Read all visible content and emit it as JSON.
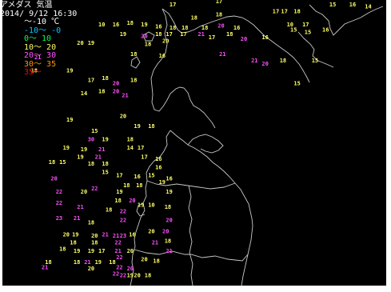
{
  "header": {
    "title": "アメダス 気温",
    "datetime": "2014/ 9/12 16:30"
  },
  "legend": [
    {
      "label": "～-10 ℃",
      "color": "#ffffff"
    },
    {
      "label": "-10～ -0",
      "color": "#00c8ff"
    },
    {
      "label": "0～ 10",
      "color": "#00ff50"
    },
    {
      "label": "10～ 20",
      "color": "#ffff64"
    },
    {
      "label": "20～ 30",
      "color": "#ff50ff"
    },
    {
      "label": "30～ 35",
      "color": "#ff9600"
    },
    {
      "label": "35～",
      "color": "#ff0000"
    }
  ],
  "stations": [
    {
      "v": "17",
      "c": "#ffff64",
      "lon": 141.55,
      "lat": 45.3
    },
    {
      "v": "18",
      "c": "#ffff64",
      "lon": 141.85,
      "lat": 45.1
    },
    {
      "v": "17",
      "c": "#ffff64",
      "lon": 142.2,
      "lat": 45.35
    },
    {
      "v": "18",
      "c": "#ffff64",
      "lon": 142.2,
      "lat": 45.15
    },
    {
      "v": "17",
      "c": "#ffff64",
      "lon": 143.0,
      "lat": 45.2
    },
    {
      "v": "17",
      "c": "#ffff64",
      "lon": 143.12,
      "lat": 45.2
    },
    {
      "v": "18",
      "c": "#ffff64",
      "lon": 143.3,
      "lat": 45.2
    },
    {
      "v": "15",
      "c": "#ffff64",
      "lon": 143.8,
      "lat": 45.3
    },
    {
      "v": "16",
      "c": "#ffff64",
      "lon": 144.08,
      "lat": 45.3
    },
    {
      "v": "14",
      "c": "#ffff64",
      "lon": 144.3,
      "lat": 45.27
    },
    {
      "v": "10",
      "c": "#ffff64",
      "lon": 140.55,
      "lat": 45.0
    },
    {
      "v": "16",
      "c": "#ffff64",
      "lon": 140.75,
      "lat": 45.0
    },
    {
      "v": "18",
      "c": "#ffff64",
      "lon": 140.95,
      "lat": 45.02
    },
    {
      "v": "19",
      "c": "#ffff64",
      "lon": 141.15,
      "lat": 45.0
    },
    {
      "v": "16",
      "c": "#ffff64",
      "lon": 141.35,
      "lat": 44.97
    },
    {
      "v": "18",
      "c": "#ffff64",
      "lon": 141.55,
      "lat": 44.95
    },
    {
      "v": "18",
      "c": "#ffff64",
      "lon": 141.72,
      "lat": 44.95
    },
    {
      "v": "18",
      "c": "#ffff64",
      "lon": 142.0,
      "lat": 44.95
    },
    {
      "v": "20",
      "c": "#ff50ff",
      "lon": 142.23,
      "lat": 44.98
    },
    {
      "v": "16",
      "c": "#ffff64",
      "lon": 142.45,
      "lat": 44.95
    },
    {
      "v": "10",
      "c": "#ffff64",
      "lon": 143.2,
      "lat": 45.0
    },
    {
      "v": "17",
      "c": "#ffff64",
      "lon": 143.42,
      "lat": 45.0
    },
    {
      "v": "15",
      "c": "#ffff64",
      "lon": 143.25,
      "lat": 44.92
    },
    {
      "v": "15",
      "c": "#ffff64",
      "lon": 143.45,
      "lat": 44.88
    },
    {
      "v": "16",
      "c": "#ffff64",
      "lon": 143.7,
      "lat": 44.92
    },
    {
      "v": "19",
      "c": "#ffff64",
      "lon": 140.85,
      "lat": 44.85
    },
    {
      "v": "20",
      "c": "#ff50ff",
      "lon": 141.15,
      "lat": 44.82
    },
    {
      "v": "18",
      "c": "#ffff64",
      "lon": 141.35,
      "lat": 44.85
    },
    {
      "v": "17",
      "c": "#ffff64",
      "lon": 141.5,
      "lat": 44.85
    },
    {
      "v": "17",
      "c": "#ffff64",
      "lon": 141.7,
      "lat": 44.85
    },
    {
      "v": "21",
      "c": "#ff50ff",
      "lon": 141.95,
      "lat": 44.85
    },
    {
      "v": "17",
      "c": "#ffff64",
      "lon": 142.1,
      "lat": 44.8
    },
    {
      "v": "18",
      "c": "#ffff64",
      "lon": 142.35,
      "lat": 44.85
    },
    {
      "v": "20",
      "c": "#ff50ff",
      "lon": 142.55,
      "lat": 44.78
    },
    {
      "v": "16",
      "c": "#ffff64",
      "lon": 142.85,
      "lat": 44.8
    },
    {
      "v": "20",
      "c": "#ffff64",
      "lon": 140.25,
      "lat": 44.72
    },
    {
      "v": "19",
      "c": "#ffff64",
      "lon": 140.4,
      "lat": 44.72
    },
    {
      "v": "18",
      "c": "#ffff64",
      "lon": 141.2,
      "lat": 44.7
    },
    {
      "v": "20",
      "c": "#ffff64",
      "lon": 141.45,
      "lat": 44.75
    },
    {
      "v": "18",
      "c": "#ffff64",
      "lon": 141.0,
      "lat": 44.55
    },
    {
      "v": "16",
      "c": "#ffff64",
      "lon": 141.4,
      "lat": 44.52
    },
    {
      "v": "21",
      "c": "#ff50ff",
      "lon": 142.25,
      "lat": 44.55
    },
    {
      "v": "21",
      "c": "#ff50ff",
      "lon": 142.7,
      "lat": 44.45
    },
    {
      "v": "20",
      "c": "#ff50ff",
      "lon": 142.85,
      "lat": 44.4
    },
    {
      "v": "18",
      "c": "#ffff64",
      "lon": 143.1,
      "lat": 44.45
    },
    {
      "v": "15",
      "c": "#ffff64",
      "lon": 143.55,
      "lat": 44.45
    },
    {
      "v": "21",
      "c": "#ff50ff",
      "lon": 139.65,
      "lat": 44.5
    },
    {
      "v": "18",
      "c": "#ffff64",
      "lon": 139.6,
      "lat": 44.3
    },
    {
      "v": "19",
      "c": "#ffff64",
      "lon": 140.1,
      "lat": 44.3
    },
    {
      "v": "17",
      "c": "#ffff64",
      "lon": 140.4,
      "lat": 44.15
    },
    {
      "v": "18",
      "c": "#ffff64",
      "lon": 140.6,
      "lat": 44.18
    },
    {
      "v": "20",
      "c": "#ff50ff",
      "lon": 140.75,
      "lat": 44.1
    },
    {
      "v": "18",
      "c": "#ffff64",
      "lon": 141.0,
      "lat": 44.15
    },
    {
      "v": "14",
      "c": "#ffff64",
      "lon": 140.3,
      "lat": 43.95
    },
    {
      "v": "18",
      "c": "#ffff64",
      "lon": 140.55,
      "lat": 43.98
    },
    {
      "v": "20",
      "c": "#ff50ff",
      "lon": 140.75,
      "lat": 43.98
    },
    {
      "v": "21",
      "c": "#ff50ff",
      "lon": 140.88,
      "lat": 43.92
    },
    {
      "v": "15",
      "c": "#ffff64",
      "lon": 143.3,
      "lat": 44.1
    },
    {
      "v": "19",
      "c": "#ffff64",
      "lon": 140.1,
      "lat": 43.55
    },
    {
      "v": "20",
      "c": "#ffff64",
      "lon": 140.85,
      "lat": 43.6
    },
    {
      "v": "19",
      "c": "#ffff64",
      "lon": 141.05,
      "lat": 43.45
    },
    {
      "v": "18",
      "c": "#ffff64",
      "lon": 141.25,
      "lat": 43.45
    },
    {
      "v": "15",
      "c": "#ffff64",
      "lon": 140.45,
      "lat": 43.38
    },
    {
      "v": "30",
      "c": "#ff50ff",
      "lon": 140.4,
      "lat": 43.25
    },
    {
      "v": "19",
      "c": "#ffff64",
      "lon": 140.6,
      "lat": 43.25
    },
    {
      "v": "18",
      "c": "#ffff64",
      "lon": 140.95,
      "lat": 43.25
    },
    {
      "v": "19",
      "c": "#ffff64",
      "lon": 140.05,
      "lat": 43.12
    },
    {
      "v": "19",
      "c": "#ffff64",
      "lon": 140.3,
      "lat": 43.1
    },
    {
      "v": "21",
      "c": "#ff50ff",
      "lon": 140.55,
      "lat": 43.1
    },
    {
      "v": "14",
      "c": "#ffff64",
      "lon": 140.95,
      "lat": 43.12
    },
    {
      "v": "17",
      "c": "#ffff64",
      "lon": 141.1,
      "lat": 43.12
    },
    {
      "v": "19",
      "c": "#ffff64",
      "lon": 140.25,
      "lat": 42.98
    },
    {
      "v": "21",
      "c": "#ff50ff",
      "lon": 140.5,
      "lat": 42.98
    },
    {
      "v": "17",
      "c": "#ffff64",
      "lon": 141.15,
      "lat": 42.98
    },
    {
      "v": "16",
      "c": "#ffff64",
      "lon": 141.35,
      "lat": 42.95
    },
    {
      "v": "18",
      "c": "#ffff64",
      "lon": 139.85,
      "lat": 42.9
    },
    {
      "v": "15",
      "c": "#ffff64",
      "lon": 140.0,
      "lat": 42.9
    },
    {
      "v": "18",
      "c": "#ffff64",
      "lon": 140.4,
      "lat": 42.88
    },
    {
      "v": "18",
      "c": "#ffff64",
      "lon": 140.6,
      "lat": 42.88
    },
    {
      "v": "16",
      "c": "#ffff64",
      "lon": 141.35,
      "lat": 42.82
    },
    {
      "v": "15",
      "c": "#ffff64",
      "lon": 140.6,
      "lat": 42.75
    },
    {
      "v": "17",
      "c": "#ffff64",
      "lon": 140.8,
      "lat": 42.7
    },
    {
      "v": "16",
      "c": "#ffff64",
      "lon": 141.05,
      "lat": 42.68
    },
    {
      "v": "15",
      "c": "#ffff64",
      "lon": 141.25,
      "lat": 42.7
    },
    {
      "v": "20",
      "c": "#ff50ff",
      "lon": 139.88,
      "lat": 42.65
    },
    {
      "v": "16",
      "c": "#ffff64",
      "lon": 141.5,
      "lat": 42.65
    },
    {
      "v": "18",
      "c": "#ffff64",
      "lon": 140.9,
      "lat": 42.55
    },
    {
      "v": "18",
      "c": "#ffff64",
      "lon": 141.08,
      "lat": 42.55
    },
    {
      "v": "19",
      "c": "#ffff64",
      "lon": 141.4,
      "lat": 42.6
    },
    {
      "v": "22",
      "c": "#ff50ff",
      "lon": 139.95,
      "lat": 42.45
    },
    {
      "v": "20",
      "c": "#ffff64",
      "lon": 140.3,
      "lat": 42.45
    },
    {
      "v": "22",
      "c": "#ff50ff",
      "lon": 140.45,
      "lat": 42.5
    },
    {
      "v": "19",
      "c": "#ffff64",
      "lon": 140.8,
      "lat": 42.45
    },
    {
      "v": "19",
      "c": "#ffff64",
      "lon": 141.5,
      "lat": 42.45
    },
    {
      "v": "18",
      "c": "#ffff64",
      "lon": 140.78,
      "lat": 42.32
    },
    {
      "v": "20",
      "c": "#ff50ff",
      "lon": 140.98,
      "lat": 42.32
    },
    {
      "v": "19",
      "c": "#ffff64",
      "lon": 141.1,
      "lat": 42.25
    },
    {
      "v": "10",
      "c": "#ffff64",
      "lon": 141.25,
      "lat": 42.25
    },
    {
      "v": "18",
      "c": "#ffff64",
      "lon": 141.48,
      "lat": 42.22
    },
    {
      "v": "22",
      "c": "#ff50ff",
      "lon": 139.95,
      "lat": 42.28
    },
    {
      "v": "21",
      "c": "#ff50ff",
      "lon": 140.25,
      "lat": 42.22
    },
    {
      "v": "18",
      "c": "#ffff64",
      "lon": 140.65,
      "lat": 42.18
    },
    {
      "v": "22",
      "c": "#ff50ff",
      "lon": 140.85,
      "lat": 42.15
    },
    {
      "v": "23",
      "c": "#ff50ff",
      "lon": 139.95,
      "lat": 42.05
    },
    {
      "v": "21",
      "c": "#ff50ff",
      "lon": 140.2,
      "lat": 42.05
    },
    {
      "v": "18",
      "c": "#ffff64",
      "lon": 140.4,
      "lat": 41.98
    },
    {
      "v": "22",
      "c": "#ff50ff",
      "lon": 140.85,
      "lat": 42.02
    },
    {
      "v": "20",
      "c": "#ff50ff",
      "lon": 141.5,
      "lat": 42.02
    },
    {
      "v": "20",
      "c": "#ffff64",
      "lon": 141.25,
      "lat": 41.85
    },
    {
      "v": "20",
      "c": "#ff50ff",
      "lon": 141.45,
      "lat": 41.85
    },
    {
      "v": "20",
      "c": "#ffff64",
      "lon": 140.05,
      "lat": 41.8
    },
    {
      "v": "19",
      "c": "#ffff64",
      "lon": 140.18,
      "lat": 41.8
    },
    {
      "v": "20",
      "c": "#ffff64",
      "lon": 140.45,
      "lat": 41.78
    },
    {
      "v": "21",
      "c": "#ff50ff",
      "lon": 140.6,
      "lat": 41.8
    },
    {
      "v": "21",
      "c": "#ff50ff",
      "lon": 140.75,
      "lat": 41.78
    },
    {
      "v": "23",
      "c": "#ff50ff",
      "lon": 140.85,
      "lat": 41.78
    },
    {
      "v": "16",
      "c": "#ffff64",
      "lon": 140.98,
      "lat": 41.8
    },
    {
      "v": "18",
      "c": "#ffff64",
      "lon": 140.15,
      "lat": 41.68
    },
    {
      "v": "18",
      "c": "#ffff64",
      "lon": 140.45,
      "lat": 41.68
    },
    {
      "v": "22",
      "c": "#ff50ff",
      "lon": 140.78,
      "lat": 41.68
    },
    {
      "v": "21",
      "c": "#ff50ff",
      "lon": 141.3,
      "lat": 41.68
    },
    {
      "v": "18",
      "c": "#ffff64",
      "lon": 141.48,
      "lat": 41.7
    },
    {
      "v": "18",
      "c": "#ffff64",
      "lon": 140.0,
      "lat": 41.58
    },
    {
      "v": "19",
      "c": "#ffff64",
      "lon": 140.2,
      "lat": 41.55
    },
    {
      "v": "19",
      "c": "#ffff64",
      "lon": 140.4,
      "lat": 41.55
    },
    {
      "v": "17",
      "c": "#ffff64",
      "lon": 140.55,
      "lat": 41.55
    },
    {
      "v": "21",
      "c": "#ff50ff",
      "lon": 140.78,
      "lat": 41.55
    },
    {
      "v": "20",
      "c": "#ffff64",
      "lon": 140.95,
      "lat": 41.55
    },
    {
      "v": "21",
      "c": "#ff50ff",
      "lon": 141.5,
      "lat": 41.55
    },
    {
      "v": "22",
      "c": "#ff50ff",
      "lon": 140.8,
      "lat": 41.45
    },
    {
      "v": "18",
      "c": "#ffff64",
      "lon": 139.8,
      "lat": 41.38
    },
    {
      "v": "18",
      "c": "#ffff64",
      "lon": 140.2,
      "lat": 41.38
    },
    {
      "v": "21",
      "c": "#ff50ff",
      "lon": 140.35,
      "lat": 41.38
    },
    {
      "v": "19",
      "c": "#ffff64",
      "lon": 140.5,
      "lat": 41.38
    },
    {
      "v": "18",
      "c": "#ffff64",
      "lon": 140.7,
      "lat": 41.38
    },
    {
      "v": "20",
      "c": "#ffff64",
      "lon": 141.15,
      "lat": 41.42
    },
    {
      "v": "18",
      "c": "#ffff64",
      "lon": 141.32,
      "lat": 41.4
    },
    {
      "v": "21",
      "c": "#ff50ff",
      "lon": 139.75,
      "lat": 41.3
    },
    {
      "v": "20",
      "c": "#ffff64",
      "lon": 140.4,
      "lat": 41.28
    },
    {
      "v": "22",
      "c": "#ff50ff",
      "lon": 140.8,
      "lat": 41.3
    },
    {
      "v": "20",
      "c": "#ff50ff",
      "lon": 140.95,
      "lat": 41.28
    },
    {
      "v": "22",
      "c": "#ff50ff",
      "lon": 140.75,
      "lat": 41.2
    },
    {
      "v": "19",
      "c": "#ffff64",
      "lon": 140.95,
      "lat": 41.18
    },
    {
      "v": "20",
      "c": "#ffff64",
      "lon": 141.05,
      "lat": 41.18
    },
    {
      "v": "18",
      "c": "#ffff64",
      "lon": 141.2,
      "lat": 41.18
    },
    {
      "v": "22",
      "c": "#ff50ff",
      "lon": 140.85,
      "lat": 41.18
    }
  ]
}
